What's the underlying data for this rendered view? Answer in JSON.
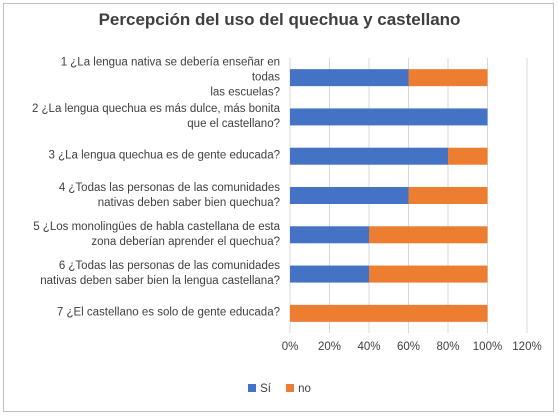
{
  "colors": {
    "si": "#4472c4",
    "no": "#ed7d31",
    "grid": "#d9d9d9",
    "text": "#3f3f3f"
  },
  "chart_data": {
    "type": "bar",
    "orientation": "horizontal",
    "stacked": true,
    "title": "Percepción del uso del quechua y castellano",
    "categories": [
      [
        "1 ¿La lengua nativa se debería enseñar en todas",
        "las escuelas?"
      ],
      [
        "2 ¿La lengua quechua es más dulce, más bonita",
        "que el castellano?"
      ],
      [
        "3 ¿La lengua quechua es de gente educada?"
      ],
      [
        "4 ¿Todas las personas de las comunidades",
        "nativas deben saber bien quechua?"
      ],
      [
        "5 ¿Los monolingües de habla castellana de esta",
        "zona deberían aprender el quechua?"
      ],
      [
        "6 ¿Todas las personas de las comunidades",
        "nativas deben saber bien la lengua castellana?"
      ],
      [
        "7 ¿El castellano es solo de gente educada?"
      ]
    ],
    "series": [
      {
        "name": "Sí",
        "values": [
          0.6,
          1.0,
          0.8,
          0.6,
          0.4,
          0.4,
          0.0
        ]
      },
      {
        "name": "no",
        "values": [
          0.4,
          0.0,
          0.2,
          0.4,
          0.6,
          0.6,
          1.0
        ]
      }
    ],
    "xlim": [
      0,
      1.2
    ],
    "xticks": [
      "0%",
      "20%",
      "40%",
      "60%",
      "80%",
      "100%",
      "120%"
    ],
    "grid": true,
    "legend": "bottom"
  }
}
